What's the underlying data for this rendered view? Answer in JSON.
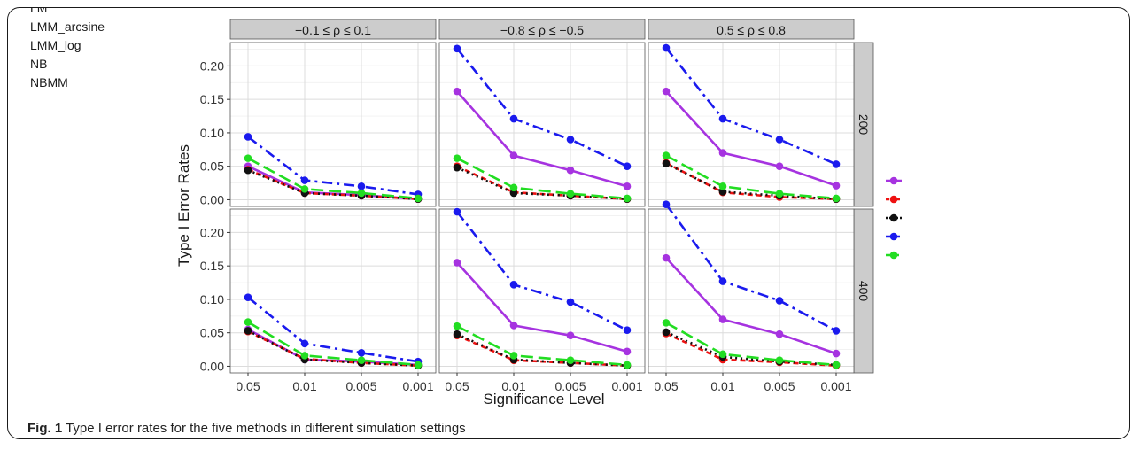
{
  "caption": {
    "label": "Fig. 1",
    "text": "Type I error rates for the five methods in different simulation settings"
  },
  "chart_data": {
    "type": "line",
    "xlabel": "Significance Level",
    "ylabel": "Type I Error Rates",
    "categories": [
      "0.05",
      "0.01",
      "0.005",
      "0.001"
    ],
    "ylim": [
      -0.01,
      0.235
    ],
    "yticks_row1": [
      "0.00",
      "0.05",
      "0.10",
      "0.15",
      "0.20"
    ],
    "yticks_row2": [
      "0.00",
      "0.05",
      "0.10",
      "0.15",
      "0.20",
      "0.25"
    ],
    "grid": true,
    "legend_position": "right",
    "columns": [
      "−0.1 ≤ ρ ≤ 0.1",
      "−0.8 ≤ ρ ≤ −0.5",
      "0.5 ≤ ρ ≤ 0.8"
    ],
    "rows": [
      "200",
      "400"
    ],
    "series_styles": [
      {
        "name": "LM",
        "color": "#a633e0",
        "dash": ""
      },
      {
        "name": "LMM_arcsine",
        "color": "#ee1111",
        "dash": "6,4"
      },
      {
        "name": "LMM_log",
        "color": "#111111",
        "dash": "2,4"
      },
      {
        "name": "NB",
        "color": "#1a1aee",
        "dash": "12,5,3,5"
      },
      {
        "name": "NBMM",
        "color": "#22dd22",
        "dash": "14,6"
      }
    ],
    "panels": [
      {
        "row": "200",
        "column": "−0.1 ≤ ρ ≤ 0.1",
        "series": [
          {
            "name": "LM",
            "values": [
              0.05,
              0.011,
              0.007,
              0.001
            ]
          },
          {
            "name": "LMM_arcsine",
            "values": [
              0.045,
              0.01,
              0.006,
              0.001
            ]
          },
          {
            "name": "LMM_log",
            "values": [
              0.044,
              0.01,
              0.006,
              0.001
            ]
          },
          {
            "name": "NB",
            "values": [
              0.094,
              0.029,
              0.02,
              0.008
            ]
          },
          {
            "name": "NBMM",
            "values": [
              0.062,
              0.016,
              0.01,
              0.002
            ]
          }
        ]
      },
      {
        "row": "200",
        "column": "−0.8 ≤ ρ ≤ −0.5",
        "series": [
          {
            "name": "LM",
            "values": [
              0.162,
              0.066,
              0.044,
              0.02
            ]
          },
          {
            "name": "LMM_arcsine",
            "values": [
              0.05,
              0.011,
              0.006,
              0.001
            ]
          },
          {
            "name": "LMM_log",
            "values": [
              0.048,
              0.01,
              0.006,
              0.001
            ]
          },
          {
            "name": "NB",
            "values": [
              0.226,
              0.121,
              0.09,
              0.05
            ]
          },
          {
            "name": "NBMM",
            "values": [
              0.062,
              0.018,
              0.009,
              0.002
            ]
          }
        ]
      },
      {
        "row": "200",
        "column": "0.5 ≤ ρ ≤ 0.8",
        "series": [
          {
            "name": "LM",
            "values": [
              0.162,
              0.07,
              0.05,
              0.021
            ]
          },
          {
            "name": "LMM_arcsine",
            "values": [
              0.055,
              0.011,
              0.004,
              0.001
            ]
          },
          {
            "name": "LMM_log",
            "values": [
              0.054,
              0.012,
              0.006,
              0.001
            ]
          },
          {
            "name": "NB",
            "values": [
              0.227,
              0.121,
              0.09,
              0.053
            ]
          },
          {
            "name": "NBMM",
            "values": [
              0.066,
              0.02,
              0.009,
              0.002
            ]
          }
        ]
      },
      {
        "row": "400",
        "column": "−0.1 ≤ ρ ≤ 0.1",
        "series": [
          {
            "name": "LM",
            "values": [
              0.055,
              0.01,
              0.007,
              0.002
            ]
          },
          {
            "name": "LMM_arcsine",
            "values": [
              0.052,
              0.011,
              0.005,
              0.001
            ]
          },
          {
            "name": "LMM_log",
            "values": [
              0.053,
              0.01,
              0.005,
              0.001
            ]
          },
          {
            "name": "NB",
            "values": [
              0.103,
              0.034,
              0.02,
              0.007
            ]
          },
          {
            "name": "NBMM",
            "values": [
              0.066,
              0.016,
              0.009,
              0.002
            ]
          }
        ]
      },
      {
        "row": "400",
        "column": "−0.8 ≤ ρ ≤ −0.5",
        "series": [
          {
            "name": "LM",
            "values": [
              0.155,
              0.061,
              0.046,
              0.022
            ]
          },
          {
            "name": "LMM_arcsine",
            "values": [
              0.046,
              0.009,
              0.005,
              0.001
            ]
          },
          {
            "name": "LMM_log",
            "values": [
              0.048,
              0.01,
              0.005,
              0.001
            ]
          },
          {
            "name": "NB",
            "values": [
              0.231,
              0.122,
              0.096,
              0.054
            ]
          },
          {
            "name": "NBMM",
            "values": [
              0.06,
              0.016,
              0.009,
              0.002
            ]
          }
        ]
      },
      {
        "row": "400",
        "column": "0.5 ≤ ρ ≤ 0.8",
        "series": [
          {
            "name": "LM",
            "values": [
              0.162,
              0.07,
              0.048,
              0.019
            ]
          },
          {
            "name": "LMM_arcsine",
            "values": [
              0.049,
              0.01,
              0.006,
              0.001
            ]
          },
          {
            "name": "LMM_log",
            "values": [
              0.051,
              0.014,
              0.007,
              0.002
            ]
          },
          {
            "name": "NB",
            "values": [
              0.242,
              0.127,
              0.098,
              0.053
            ]
          },
          {
            "name": "NBMM",
            "values": [
              0.065,
              0.018,
              0.009,
              0.002
            ]
          }
        ]
      }
    ]
  }
}
